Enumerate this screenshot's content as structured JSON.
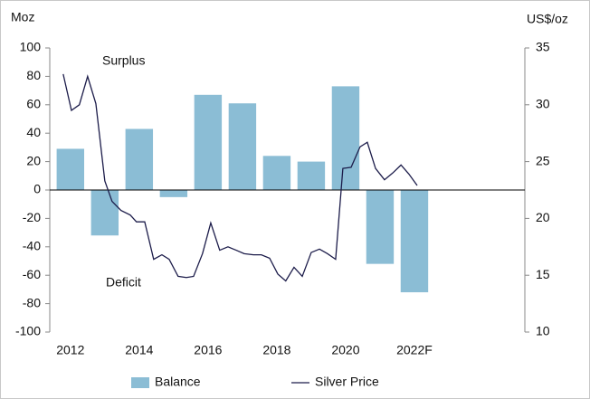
{
  "chart_data": {
    "type": "bar",
    "y_label": "Moz",
    "y2_label": "US$/oz",
    "annotations": [
      "Surplus",
      "Deficit"
    ],
    "categories": [
      "2012",
      null,
      "2014",
      null,
      "2016",
      null,
      "2018",
      null,
      "2020",
      null,
      "2022F"
    ],
    "xlim": [
      2011.4,
      2025.21
    ],
    "ylim": [
      -100,
      100
    ],
    "yticks": [
      -100,
      -80,
      -60,
      -40,
      -20,
      0,
      20,
      40,
      60,
      80,
      100
    ],
    "y2lim": [
      10,
      35
    ],
    "y2ticks": [
      10,
      15,
      20,
      25,
      30,
      35
    ],
    "legend": "bottom",
    "series": [
      {
        "name": "Balance",
        "type": "bar",
        "color": "#8bbdd5",
        "values": [
          29,
          -32,
          43,
          -5,
          67,
          61,
          24,
          20,
          73,
          -52,
          -72
        ]
      },
      {
        "name": "Silver Price",
        "type": "line",
        "axis": "y2",
        "color": "#1c1c4a",
        "x": [
          2011.79,
          2012.03,
          2012.26,
          2012.5,
          2012.74,
          2013.0,
          2013.21,
          2013.47,
          2013.74,
          2013.92,
          2014.16,
          2014.42,
          2014.66,
          2014.87,
          2015.13,
          2015.37,
          2015.58,
          2015.84,
          2016.08,
          2016.34,
          2016.58,
          2016.82,
          2017.05,
          2017.32,
          2017.55,
          2017.79,
          2018.03,
          2018.26,
          2018.5,
          2018.74,
          2019.0,
          2019.24,
          2019.47,
          2019.71,
          2019.92,
          2020.16,
          2020.42,
          2020.63,
          2020.87,
          2021.13,
          2021.37,
          2021.61,
          2021.84,
          2022.08
        ],
        "values": [
          32.7,
          29.5,
          30.0,
          32.5,
          30.1,
          23.3,
          21.5,
          20.7,
          20.3,
          19.7,
          19.7,
          16.4,
          16.8,
          16.4,
          14.9,
          14.8,
          14.9,
          16.9,
          19.6,
          17.2,
          17.5,
          17.2,
          16.9,
          16.8,
          16.8,
          16.5,
          15.1,
          14.5,
          15.7,
          14.9,
          17.0,
          17.3,
          16.9,
          16.4,
          24.4,
          24.5,
          26.3,
          26.7,
          24.4,
          23.4,
          24.0,
          24.7,
          23.9,
          22.9
        ]
      }
    ]
  }
}
